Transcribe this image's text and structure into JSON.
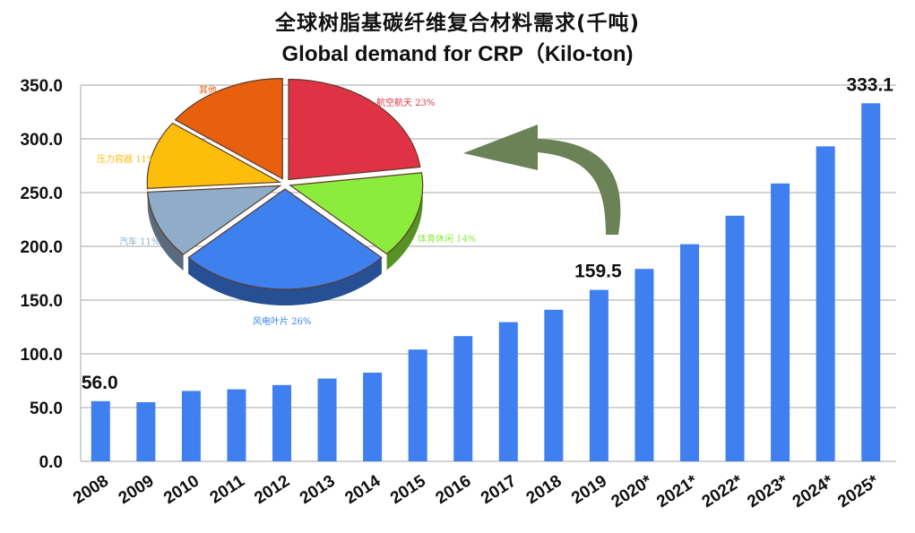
{
  "title_cn": "全球树脂基碳纤维复合材料需求(千吨)",
  "title_en": "Global demand for CRP（Kilo-ton)",
  "colors": {
    "bar": "#3f7ff0",
    "grid": "#b7b7b7",
    "arrow": "#6a8256"
  },
  "chart_data": [
    {
      "type": "bar",
      "categories": [
        "2008",
        "2009",
        "2010",
        "2011",
        "2012",
        "2013",
        "2014",
        "2015",
        "2016",
        "2017",
        "2018",
        "2019",
        "2020*",
        "2021*",
        "2022*",
        "2023*",
        "2024*",
        "2025*"
      ],
      "values": [
        56.0,
        55.0,
        65.5,
        67.0,
        71.0,
        77.0,
        82.5,
        104.0,
        116.5,
        129.5,
        141.0,
        159.5,
        179.0,
        202.0,
        228.5,
        258.5,
        293.0,
        333.1
      ],
      "ylim": [
        0,
        350
      ],
      "yticks": [
        "0.0",
        "50.0",
        "100.0",
        "150.0",
        "200.0",
        "250.0",
        "300.0",
        "350.0"
      ],
      "data_labels": [
        {
          "category": "2008",
          "text": "56.0"
        },
        {
          "category": "2019",
          "text": "159.5"
        },
        {
          "category": "2025*",
          "text": "333.1"
        }
      ],
      "grid": true,
      "legend": "none"
    },
    {
      "type": "pie",
      "slices": [
        {
          "label": "航空航天 23%",
          "value": 23,
          "color": "#e03245"
        },
        {
          "label": "体育休闲 14%",
          "value": 14,
          "color": "#8cec3c"
        },
        {
          "label": "风电叶片 26%",
          "value": 26,
          "color": "#3d80ee"
        },
        {
          "label": "汽车 11%",
          "value": 11,
          "color": "#8fadc9"
        },
        {
          "label": "压力容器 11%",
          "value": 11,
          "color": "#fcbe0a"
        },
        {
          "label": "其他",
          "value": 15,
          "color": "#e8600e"
        }
      ]
    }
  ]
}
